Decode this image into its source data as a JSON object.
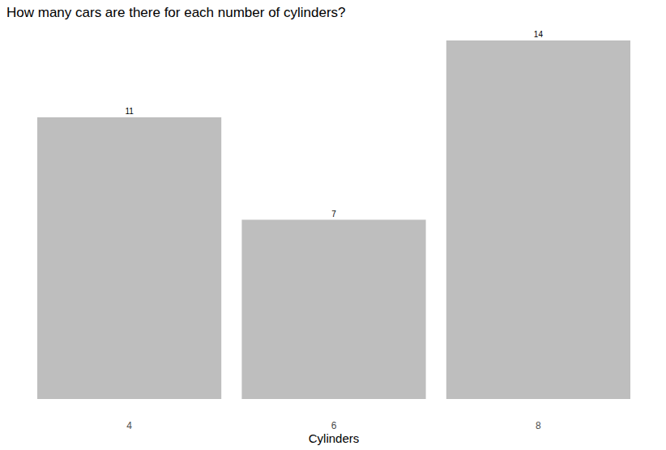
{
  "chart_data": {
    "type": "bar",
    "title": "How many cars are there for each number of cylinders?",
    "x_label": "Cylinders",
    "categories": [
      "4",
      "6",
      "8"
    ],
    "values": [
      11,
      7,
      14
    ],
    "color": "#bebebe",
    "ylim": [
      0,
      14
    ],
    "grid": false,
    "data_labels": true,
    "tick_labels": "x"
  }
}
